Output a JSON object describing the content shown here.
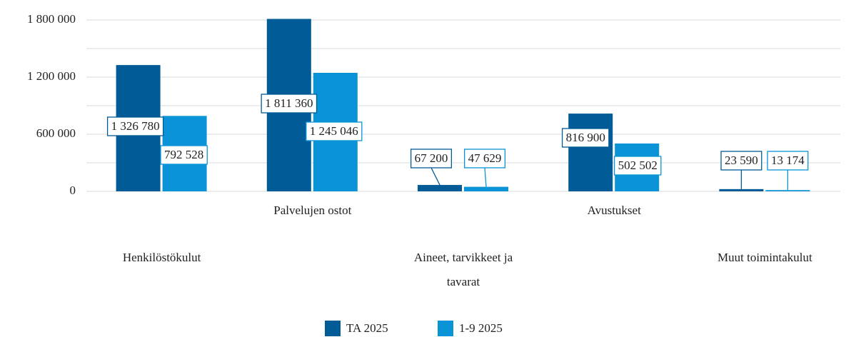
{
  "chart_data": {
    "type": "bar",
    "categories": [
      "Henkilöstökulut",
      "Palvelujen ostot",
      "Aineet, tarvikkeet ja tavarat",
      "Avustukset",
      "Muut toimintakulut"
    ],
    "series": [
      {
        "name": "TA 2025",
        "color": "#005b96",
        "values": [
          1326780,
          1811360,
          67200,
          816900,
          23590
        ],
        "value_labels": [
          "1 326 780",
          "1 811 360",
          "67 200",
          "816 900",
          "23 590"
        ]
      },
      {
        "name": "1-9 2025",
        "color": "#0a93d6",
        "values": [
          792528,
          1245046,
          47629,
          502502,
          13174
        ],
        "value_labels": [
          "792 528",
          "1 245 046",
          "47 629",
          "502 502",
          "13 174"
        ]
      }
    ],
    "ylim": [
      0,
      1800000
    ],
    "yticks": [
      {
        "value": 0,
        "label": "0"
      },
      {
        "value": 600000,
        "label": "600 000"
      },
      {
        "value": 1200000,
        "label": "1 200 000"
      },
      {
        "value": 1800000,
        "label": "1 800 000"
      }
    ],
    "minor_yticks": [
      300000,
      900000,
      1500000
    ],
    "grid": true,
    "legend": "bottom"
  }
}
